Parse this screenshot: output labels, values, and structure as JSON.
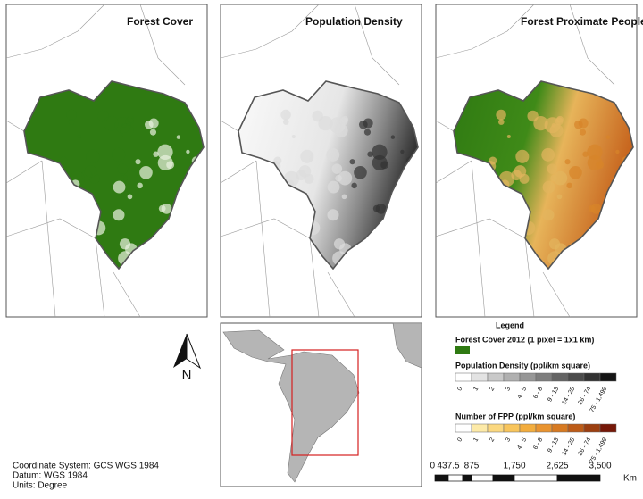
{
  "panels": [
    {
      "title": "Forest Cover"
    },
    {
      "title": "Population Density"
    },
    {
      "title": "Forest Proximate People"
    }
  ],
  "north": "N",
  "legend": {
    "title": "Legend",
    "forest_label": "Forest Cover 2012 (1 pixel = 1x1 km)",
    "pop_label": "Population Density (ppl/km square)",
    "pop_classes": [
      "0",
      "1",
      "2",
      "3",
      "4 - 5",
      "6 - 8",
      "9 - 13",
      "14 - 25",
      "26 - 74",
      "75 - 1,499"
    ],
    "fpp_label": "Number of FPP (ppl/km square)",
    "fpp_classes": [
      "0",
      "1",
      "2",
      "3",
      "4 - 5",
      "6 - 8",
      "9 - 13",
      "14 - 25",
      "26 - 74",
      "75 - 1,499"
    ]
  },
  "scale": {
    "labels": [
      "0",
      "437.5",
      "875",
      "1,750",
      "2,625",
      "3,500"
    ],
    "unit": "Km"
  },
  "notes": [
    "Coordinate System: GCS WGS 1984",
    "Datum: WGS 1984",
    "Units: Degree"
  ]
}
